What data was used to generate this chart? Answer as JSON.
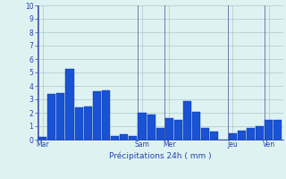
{
  "bar_values": [
    0.2,
    3.4,
    3.5,
    5.3,
    2.4,
    2.5,
    3.6,
    3.7,
    0.3,
    0.4,
    0.3,
    2.0,
    1.9,
    0.9,
    1.6,
    1.5,
    2.9,
    2.1,
    0.9,
    0.6,
    0.0,
    0.5,
    0.7,
    0.9,
    1.0,
    1.5,
    1.5
  ],
  "day_labels": [
    "Mar",
    "Sam",
    "Mer",
    "Jeu",
    "Ven"
  ],
  "day_positions": [
    0,
    11,
    14,
    21,
    25
  ],
  "ylabel_ticks": [
    0,
    1,
    2,
    3,
    4,
    5,
    6,
    7,
    8,
    9,
    10
  ],
  "xlabel": "Précipitations 24h ( mm )",
  "ylim": [
    0,
    10
  ],
  "bar_color": "#1a52d4",
  "bar_edge_color": "#0033aa",
  "bg_color": "#dff2f2",
  "grid_color": "#aac8c8",
  "axis_color": "#3355bb",
  "tick_label_color": "#2244aa",
  "xlabel_color": "#2244aa",
  "day_line_color": "#7777aa"
}
